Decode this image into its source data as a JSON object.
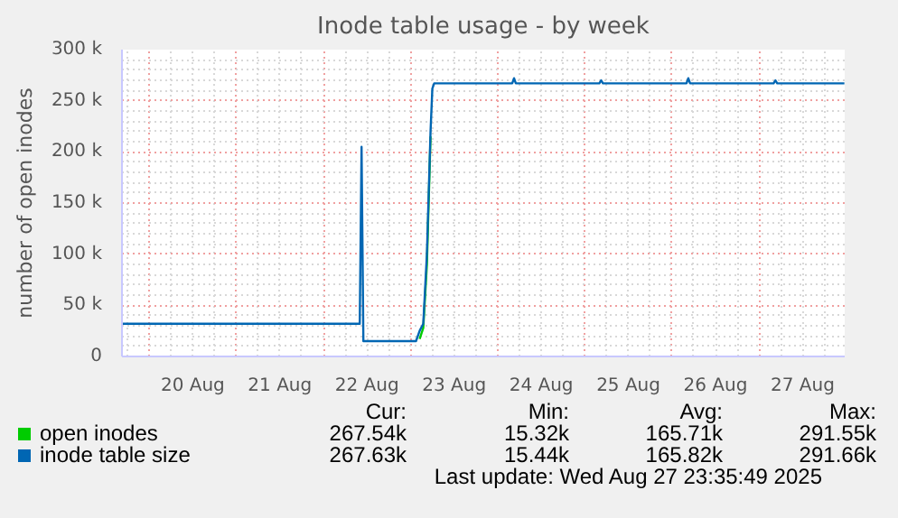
{
  "chart_data": {
    "type": "line",
    "title": "Inode table usage - by week",
    "ylabel": "number of open inodes",
    "xlim": [
      "2025-08-19T16:30",
      "2025-08-27T23:35"
    ],
    "xticks": [
      {
        "value": "2025-08-20T12:00",
        "label": "20 Aug"
      },
      {
        "value": "2025-08-21T12:00",
        "label": "21 Aug"
      },
      {
        "value": "2025-08-22T12:00",
        "label": "22 Aug"
      },
      {
        "value": "2025-08-23T12:00",
        "label": "23 Aug"
      },
      {
        "value": "2025-08-24T12:00",
        "label": "24 Aug"
      },
      {
        "value": "2025-08-25T12:00",
        "label": "25 Aug"
      },
      {
        "value": "2025-08-26T12:00",
        "label": "26 Aug"
      },
      {
        "value": "2025-08-27T12:00",
        "label": "27 Aug"
      }
    ],
    "ylim": [
      0,
      300000
    ],
    "yticks": [
      0,
      {
        "value": 50000,
        "label": "50 k"
      },
      {
        "value": 100000,
        "label": "100 k"
      },
      {
        "value": 150000,
        "label": "150 k"
      },
      {
        "value": 200000,
        "label": "200 k"
      },
      {
        "value": 250000,
        "label": "250 k"
      },
      {
        "value": 300000,
        "label": "300 k"
      }
    ],
    "grid": true,
    "legend": "bottom left",
    "x": [
      "2025-08-19T16:30",
      "2025-08-22T10:00",
      "2025-08-22T10:30",
      "2025-08-22T11:00",
      "2025-08-23T01:30",
      "2025-08-23T02:30",
      "2025-08-23T03:30",
      "2025-08-23T04:30",
      "2025-08-23T05:30",
      "2025-08-23T06:00",
      "2025-08-23T06:30",
      "2025-08-24T04:00",
      "2025-08-24T04:30",
      "2025-08-24T05:00",
      "2025-08-25T04:00",
      "2025-08-25T04:30",
      "2025-08-25T05:00",
      "2025-08-26T04:00",
      "2025-08-26T04:30",
      "2025-08-26T05:00",
      "2025-08-27T04:00",
      "2025-08-27T04:30",
      "2025-08-27T05:00",
      "2025-08-27T23:30"
    ],
    "series": [
      {
        "name": "open inodes",
        "color": "#00cc00",
        "values": [
          null,
          null,
          null,
          null,
          null,
          17000,
          28000,
          90000,
          215000,
          null,
          null,
          null,
          null,
          null,
          null,
          null,
          null,
          null,
          null,
          null,
          null,
          null,
          null,
          null
        ]
      },
      {
        "name": "inode table size",
        "color": "#0066b3",
        "values": [
          32000,
          32000,
          205000,
          15000,
          15000,
          25000,
          32000,
          100000,
          220000,
          262000,
          267000,
          267000,
          272000,
          267000,
          267000,
          270000,
          267000,
          267000,
          272000,
          267000,
          267000,
          270000,
          267000,
          267000
        ]
      }
    ],
    "annotations": [
      "Cur:",
      "Min:",
      "Avg:",
      "Max:",
      "267.54k",
      "15.32k",
      "165.71k",
      "291.55k",
      "267.63k",
      "15.44k",
      "165.82k",
      "291.66k",
      "Last update: Wed Aug 27 23:35:49 2025"
    ]
  }
}
